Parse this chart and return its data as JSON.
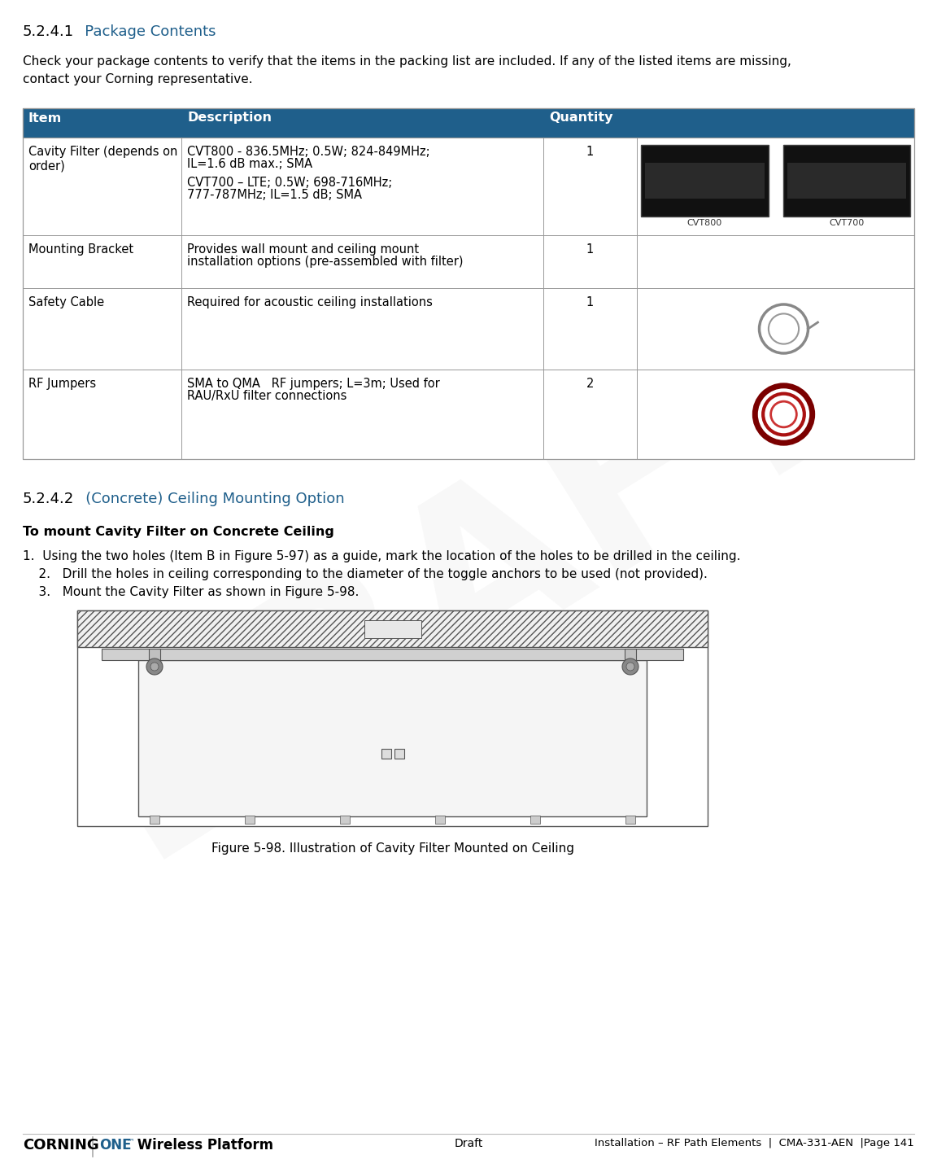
{
  "title_section": "5.2.4.1",
  "title_text": "   Package Contents",
  "intro_text1": "Check your package contents to verify that the items in the packing list are included. If any of the listed items are missing,",
  "intro_text2": "contact your Corning representative.",
  "table_header_bg": "#1f5f8b",
  "table_header_color": "#ffffff",
  "table_col_labels": [
    "Item",
    "Description",
    "Quantity"
  ],
  "row0_item": "Cavity Filter (depends on\norder)",
  "row0_desc1": "CVT800 - 836.5MHz; 0.5W; 824-849MHz;",
  "row0_desc2": "IL=1.6 dB max.; SMA",
  "row0_desc3": "CVT700 – LTE; 0.5W; 698-716MHz;",
  "row0_desc4": "777-787MHz; IL=1.5 dB; SMA",
  "row0_qty": "1",
  "row0_img_label1": "CVT800",
  "row0_img_label2": "CVT700",
  "row1_item": "Mounting Bracket",
  "row1_desc1": "Provides wall mount and ceiling mount",
  "row1_desc2": "installation options (pre-assembled with filter)",
  "row1_qty": "1",
  "row2_item": "Safety Cable",
  "row2_desc": "Required for acoustic ceiling installations",
  "row2_qty": "1",
  "row3_item": "RF Jumpers",
  "row3_desc1": "SMA to QMA   RF jumpers; L=3m; Used for",
  "row3_desc2": "RAU/RxU filter connections",
  "row3_qty": "2",
  "section2_num": "5.2.4.2",
  "section2_title": "   (Concrete) Ceiling Mounting Option",
  "section2_bold": "To mount Cavity Filter on Concrete Ceiling",
  "step1": "1.  Using the two holes (Item B in Figure 5-97) as a guide, mark the location of the holes to be drilled in the ceiling.",
  "step2": "    2.   Drill the holes in ceiling corresponding to the diameter of the toggle anchors to be used (not provided).",
  "step3": "    3.   Mount the Cavity Filter as shown in Figure 5-98.",
  "fig_label": "Ceiling",
  "fig_caption": "Figure 5-98. Illustration of Cavity Filter Mounted on Ceiling",
  "footer_right": "Installation – RF Path Elements  |  CMA-331-AEN  |Page 141",
  "watermark": "DRAFT",
  "bg": "#ffffff",
  "fg": "#000000",
  "blue": "#1f5f8b",
  "gray_border": "#999999",
  "font": "DejaVu Sans"
}
